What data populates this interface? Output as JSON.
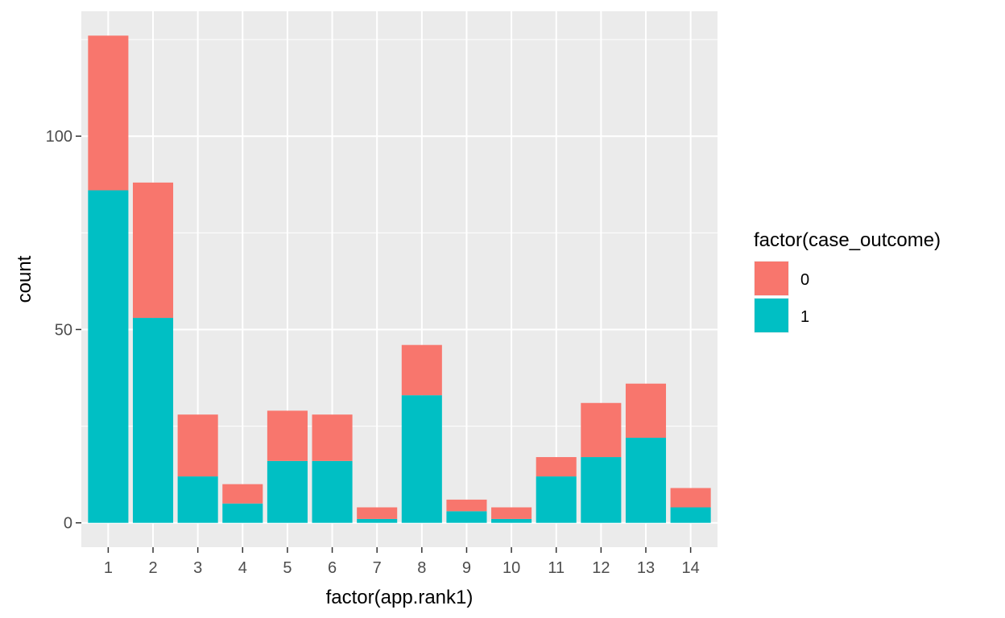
{
  "chart_data": {
    "type": "bar",
    "stacked": true,
    "categories": [
      "1",
      "2",
      "3",
      "4",
      "5",
      "6",
      "7",
      "8",
      "9",
      "10",
      "11",
      "12",
      "13",
      "14"
    ],
    "series": [
      {
        "name": "0",
        "color": "#F8766D",
        "values": [
          40,
          35,
          16,
          5,
          13,
          12,
          3,
          13,
          3,
          3,
          5,
          14,
          14,
          5
        ]
      },
      {
        "name": "1",
        "color": "#00BFC4",
        "values": [
          86,
          53,
          12,
          5,
          16,
          16,
          1,
          33,
          3,
          1,
          12,
          17,
          22,
          4
        ]
      }
    ],
    "xlabel": "factor(app.rank1)",
    "ylabel": "count",
    "yticks": [
      0,
      50,
      100
    ],
    "ylim": [
      -6.3,
      132.3
    ],
    "grid": true,
    "legend": {
      "title": "factor(case_outcome)",
      "position": "right",
      "entries": [
        "0",
        "1"
      ]
    }
  }
}
